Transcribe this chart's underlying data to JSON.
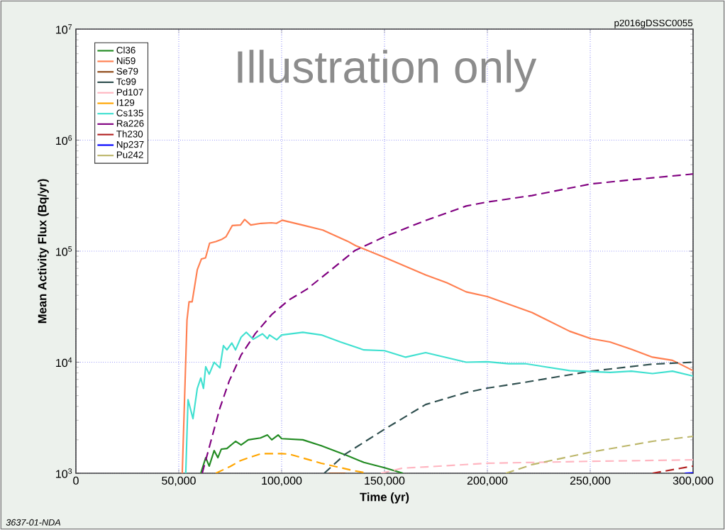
{
  "chart_data": {
    "type": "line",
    "xlabel": "Time (yr)",
    "ylabel": "Mean Activity Flux (Bq/yr)",
    "annotations": [
      "p2016gDSSC0055",
      "Illustration only",
      "3637-01-NDA"
    ],
    "xlim": [
      0,
      300000
    ],
    "ylim": [
      1000,
      10000000
    ],
    "log": "y",
    "grid": true,
    "legend": "top left",
    "marker": "none",
    "xticks": [
      {
        "value": 0,
        "label": "0"
      },
      {
        "value": 50000,
        "label": "50,000"
      },
      {
        "value": 100000,
        "label": "100,000"
      },
      {
        "value": 150000,
        "label": "150,000"
      },
      {
        "value": 200000,
        "label": "200,000"
      },
      {
        "value": 250000,
        "label": "250,000"
      },
      {
        "value": 300000,
        "label": "300,000"
      }
    ],
    "yticks": [
      {
        "value": 1000,
        "label": "10$^{3}$"
      },
      {
        "value": 10000,
        "label": "10$^{4}$"
      },
      {
        "value": 100000,
        "label": "10$^{5}$"
      },
      {
        "value": 1000000,
        "label": "10$^{6}$"
      },
      {
        "value": 10000000,
        "label": "10$^{7}$"
      }
    ],
    "series": [
      {
        "name": "Cl36",
        "color": "#228b22",
        "line_style": "solid",
        "x": [
          60700,
          63100,
          64800,
          67200,
          69000,
          70700,
          73400,
          77600,
          80300,
          83800,
          89700,
          93100,
          95200,
          98300,
          100000,
          110300,
          119300,
          132000,
          140000,
          150000,
          159000
        ],
        "values": [
          1000,
          1380,
          1160,
          1600,
          1380,
          1650,
          1670,
          1940,
          1800,
          2000,
          2080,
          2210,
          2000,
          2210,
          2050,
          2000,
          1770,
          1440,
          1250,
          1120,
          1000
        ]
      },
      {
        "name": "Ni59",
        "color": "#ff7f50",
        "line_style": "solid",
        "x": [
          51700,
          54000,
          55000,
          56500,
          59000,
          61000,
          63000,
          65000,
          68000,
          71000,
          73000,
          76000,
          80000,
          82000,
          85000,
          90000,
          95000,
          97500,
          100300,
          110000,
          120000,
          132000,
          136000,
          150000,
          170000,
          180300,
          189700,
          200000,
          221700,
          240000,
          250300,
          259600,
          270000,
          280300,
          290000,
          300000
        ],
        "values": [
          1000,
          24000,
          35000,
          35000,
          68000,
          85000,
          87000,
          118000,
          122000,
          128000,
          135000,
          170000,
          172000,
          193000,
          172000,
          178000,
          180000,
          178000,
          190000,
          172000,
          155000,
          123000,
          112000,
          88000,
          61000,
          52000,
          43000,
          39000,
          28000,
          19000,
          16300,
          15200,
          13100,
          11100,
          10400,
          8400
        ]
      },
      {
        "name": "Se79",
        "color": "#8b4513",
        "line_style": "solid",
        "x": [
          123000,
          131000
        ],
        "values": [
          1000,
          1000
        ]
      },
      {
        "name": "Tc99",
        "color": "#2f4f4f",
        "line_style": "dashed",
        "x": [
          120700,
          131000,
          150000,
          170000,
          189700,
          200000,
          217600,
          250300,
          280300,
          300000
        ],
        "values": [
          1000,
          1490,
          2490,
          4160,
          5340,
          5840,
          6560,
          8300,
          9600,
          10000
        ]
      },
      {
        "name": "Pd107",
        "color": "#ffb6c1",
        "line_style": "dashed",
        "x": [
          148300,
          158600,
          170000,
          200000,
          250300,
          300000
        ],
        "values": [
          1000,
          1110,
          1140,
          1230,
          1280,
          1320
        ]
      },
      {
        "name": "I129",
        "color": "#ffa500",
        "line_style": "dashed",
        "x": [
          68000,
          75000,
          80000,
          85000,
          90000,
          95000,
          100000,
          103500,
          119300,
          134500,
          142000
        ],
        "values": [
          1000,
          1150,
          1300,
          1400,
          1500,
          1500,
          1500,
          1490,
          1230,
          1060,
          1000
        ]
      },
      {
        "name": "Cs135",
        "color": "#40e0d0",
        "line_style": "solid",
        "x": [
          53400,
          54500,
          56900,
          59000,
          60700,
          62000,
          63100,
          64800,
          67200,
          70000,
          71700,
          73400,
          75800,
          77600,
          80300,
          82800,
          86200,
          90700,
          93100,
          94100,
          97600,
          100000,
          110300,
          119300,
          128600,
          140000,
          150000,
          160300,
          170000,
          189700,
          200000,
          210300,
          218300,
          240000,
          259700,
          270000,
          280300,
          290000,
          300000
        ],
        "values": [
          1000,
          4600,
          3100,
          5800,
          7200,
          5800,
          9100,
          7800,
          10000,
          8900,
          14100,
          12900,
          14900,
          12900,
          16800,
          18600,
          16100,
          18000,
          16300,
          17600,
          15900,
          17600,
          18600,
          17600,
          15200,
          12900,
          12700,
          11100,
          12200,
          10000,
          10100,
          9700,
          9700,
          8400,
          8100,
          8300,
          7900,
          8300,
          7500
        ]
      },
      {
        "name": "Ra226",
        "color": "#800080",
        "line_style": "dashed",
        "x": [
          61400,
          65500,
          70000,
          74500,
          80300,
          87200,
          95200,
          103400,
          112400,
          124100,
          135500,
          150000,
          170000,
          189700,
          200000,
          221700,
          250300,
          271000,
          300000
        ],
        "values": [
          1000,
          1910,
          3870,
          6760,
          11600,
          18100,
          26900,
          36200,
          45600,
          68000,
          101000,
          135000,
          189000,
          255000,
          277000,
          317000,
          403000,
          441000,
          495000
        ]
      },
      {
        "name": "Th230",
        "color": "#b22222",
        "line_style": "dashed",
        "x": [
          280300,
          300000
        ],
        "values": [
          1000,
          1160
        ]
      },
      {
        "name": "Np237",
        "color": "#0000ff",
        "line_style": "dashed",
        "x": [
          296000,
          300000
        ],
        "values": [
          1000,
          1010
        ]
      },
      {
        "name": "Pu242",
        "color": "#bdb76b",
        "line_style": "dashed",
        "x": [
          209000,
          222000,
          250300,
          280300,
          300000
        ],
        "values": [
          1000,
          1200,
          1550,
          1940,
          2150
        ]
      }
    ]
  }
}
